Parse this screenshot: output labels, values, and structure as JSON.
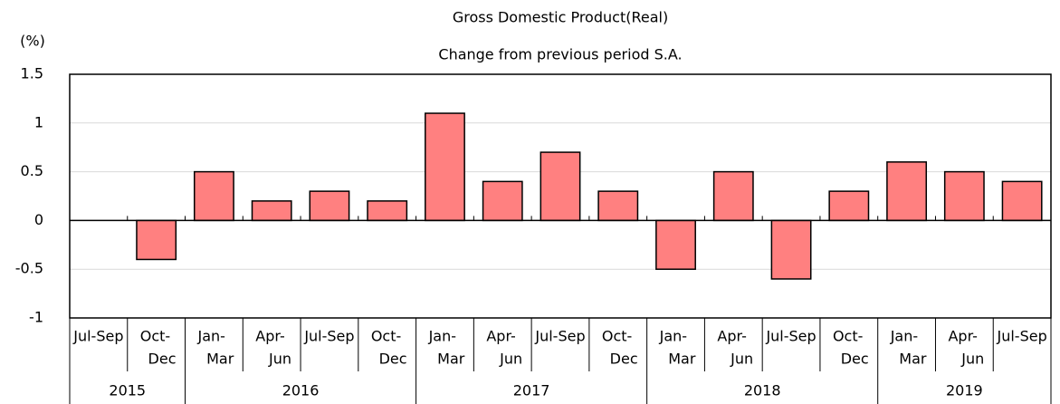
{
  "chart_data": {
    "type": "bar",
    "title": [
      "Gross Domestic Product(Real)",
      "Change from previous period S.A."
    ],
    "y_axis_label": "(%)",
    "categories": [
      [
        "Jul-Sep"
      ],
      [
        "Oct-",
        "Dec"
      ],
      [
        "Jan-",
        "Mar"
      ],
      [
        "Apr-",
        "Jun"
      ],
      [
        "Jul-Sep"
      ],
      [
        "Oct-",
        "Dec"
      ],
      [
        "Jan-",
        "Mar"
      ],
      [
        "Apr-",
        "Jun"
      ],
      [
        "Jul-Sep"
      ],
      [
        "Oct-",
        "Dec"
      ],
      [
        "Jan-",
        "Mar"
      ],
      [
        "Apr-",
        "Jun"
      ],
      [
        "Jul-Sep"
      ],
      [
        "Oct-",
        "Dec"
      ],
      [
        "Jan-",
        "Mar"
      ],
      [
        "Apr-",
        "Jun"
      ],
      [
        "Jul-Sep"
      ]
    ],
    "year_groups": [
      {
        "label": "2015",
        "span": 2
      },
      {
        "label": "2016",
        "span": 4
      },
      {
        "label": "2017",
        "span": 4
      },
      {
        "label": "2018",
        "span": 4
      },
      {
        "label": "2019",
        "span": 3
      }
    ],
    "values": [
      0,
      -0.4,
      0.5,
      0.2,
      0.3,
      0.2,
      1.1,
      0.4,
      0.7,
      0.3,
      -0.5,
      0.5,
      -0.6,
      0.3,
      0.6,
      0.5,
      0.4
    ],
    "color": "#ff8080",
    "ylim": [
      -1,
      1.5
    ],
    "yticks": [
      -1,
      -0.5,
      0,
      0.5,
      1,
      1.5
    ],
    "grid": true
  }
}
